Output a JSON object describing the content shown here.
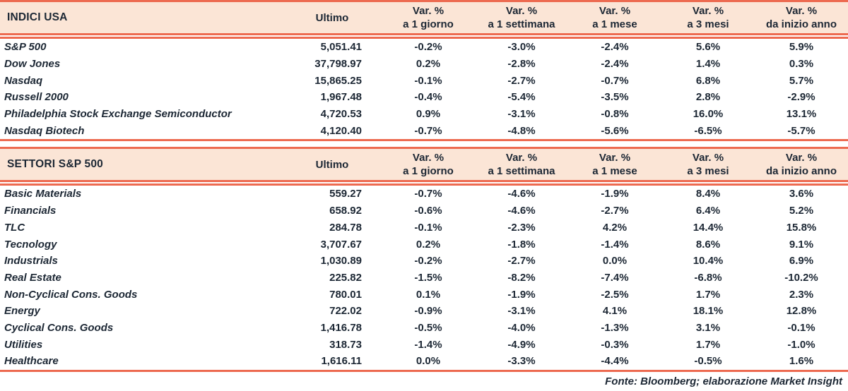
{
  "colors": {
    "accent_red": "#ED6A50",
    "header_bg": "#FBE5D6",
    "text_dark": "#1C2734"
  },
  "tables": [
    {
      "id": "indici-usa",
      "title": "INDICI USA",
      "ultimo_label": "Ultimo",
      "columns": [
        {
          "line1": "Var. %",
          "line2": "a 1 giorno"
        },
        {
          "line1": "Var. %",
          "line2": "a 1 settimana"
        },
        {
          "line1": "Var. %",
          "line2": "a 1 mese"
        },
        {
          "line1": "Var. %",
          "line2": "a 3 mesi"
        },
        {
          "line1": "Var. %",
          "line2": "da inizio anno"
        }
      ],
      "rows": [
        {
          "name": "S&P 500",
          "ultimo": "5,051.41",
          "values": [
            "-0.2%",
            "-3.0%",
            "-2.4%",
            "5.6%",
            "5.9%"
          ]
        },
        {
          "name": "Dow Jones",
          "ultimo": "37,798.97",
          "values": [
            "0.2%",
            "-2.8%",
            "-2.4%",
            "1.4%",
            "0.3%"
          ]
        },
        {
          "name": "Nasdaq",
          "ultimo": "15,865.25",
          "values": [
            "-0.1%",
            "-2.7%",
            "-0.7%",
            "6.8%",
            "5.7%"
          ]
        },
        {
          "name": "Russell 2000",
          "ultimo": "1,967.48",
          "values": [
            "-0.4%",
            "-5.4%",
            "-3.5%",
            "2.8%",
            "-2.9%"
          ]
        },
        {
          "name": "Philadelphia Stock Exchange Semiconductor",
          "ultimo": "4,720.53",
          "values": [
            "0.9%",
            "-3.1%",
            "-0.8%",
            "16.0%",
            "13.1%"
          ]
        },
        {
          "name": "Nasdaq Biotech",
          "ultimo": "4,120.40",
          "values": [
            "-0.7%",
            "-4.8%",
            "-5.6%",
            "-6.5%",
            "-5.7%"
          ]
        }
      ]
    },
    {
      "id": "settori-sp500",
      "title": "SETTORI S&P 500",
      "ultimo_label": "Ultimo",
      "columns": [
        {
          "line1": "Var. %",
          "line2": "a 1 giorno"
        },
        {
          "line1": "Var. %",
          "line2": "a 1 settimana"
        },
        {
          "line1": "Var. %",
          "line2": "a 1 mese"
        },
        {
          "line1": "Var. %",
          "line2": "a 3 mesi"
        },
        {
          "line1": "Var. %",
          "line2": "da inizio anno"
        }
      ],
      "rows": [
        {
          "name": "Basic Materials",
          "ultimo": "559.27",
          "values": [
            "-0.7%",
            "-4.6%",
            "-1.9%",
            "8.4%",
            "3.6%"
          ]
        },
        {
          "name": "Financials",
          "ultimo": "658.92",
          "values": [
            "-0.6%",
            "-4.6%",
            "-2.7%",
            "6.4%",
            "5.2%"
          ]
        },
        {
          "name": "TLC",
          "ultimo": "284.78",
          "values": [
            "-0.1%",
            "-2.3%",
            "4.2%",
            "14.4%",
            "15.8%"
          ]
        },
        {
          "name": "Tecnology",
          "ultimo": "3,707.67",
          "values": [
            "0.2%",
            "-1.8%",
            "-1.4%",
            "8.6%",
            "9.1%"
          ]
        },
        {
          "name": "Industrials",
          "ultimo": "1,030.89",
          "values": [
            "-0.2%",
            "-2.7%",
            "0.0%",
            "10.4%",
            "6.9%"
          ]
        },
        {
          "name": "Real Estate",
          "ultimo": "225.82",
          "values": [
            "-1.5%",
            "-8.2%",
            "-7.4%",
            "-6.8%",
            "-10.2%"
          ]
        },
        {
          "name": "Non-Cyclical Cons. Goods",
          "ultimo": "780.01",
          "values": [
            "0.1%",
            "-1.9%",
            "-2.5%",
            "1.7%",
            "2.3%"
          ]
        },
        {
          "name": "Energy",
          "ultimo": "722.02",
          "values": [
            "-0.9%",
            "-3.1%",
            "4.1%",
            "18.1%",
            "12.8%"
          ]
        },
        {
          "name": "Cyclical Cons. Goods",
          "ultimo": "1,416.78",
          "values": [
            "-0.5%",
            "-4.0%",
            "-1.3%",
            "3.1%",
            "-0.1%"
          ]
        },
        {
          "name": "Utilities",
          "ultimo": "318.73",
          "values": [
            "-1.4%",
            "-4.9%",
            "-0.3%",
            "1.7%",
            "-1.0%"
          ]
        },
        {
          "name": "Healthcare",
          "ultimo": "1,616.11",
          "values": [
            "0.0%",
            "-3.3%",
            "-4.4%",
            "-0.5%",
            "1.6%"
          ]
        }
      ]
    }
  ],
  "footer": {
    "text": "Fonte: Bloomberg; elaborazione Market Insight"
  }
}
